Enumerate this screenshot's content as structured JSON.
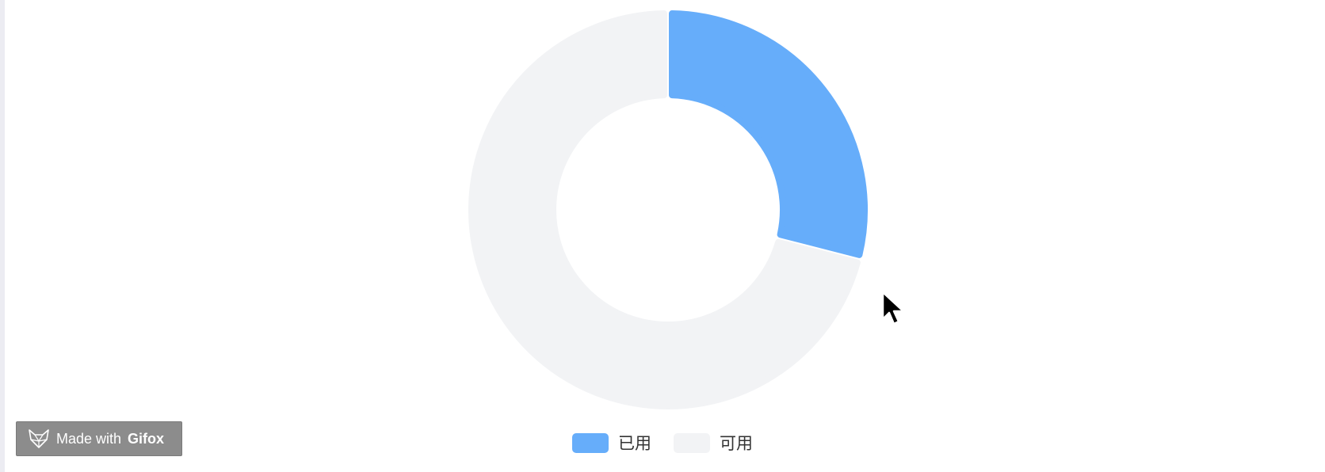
{
  "chart_data": {
    "type": "pie",
    "variant": "donut",
    "categories": [
      "已用",
      "可用"
    ],
    "values": [
      29,
      71
    ],
    "colors": [
      "#66adfa",
      "#f2f3f5"
    ],
    "legend_position": "bottom"
  },
  "watermark": {
    "prefix": "Made with",
    "brand": "Gifox",
    "icon": "fox-logo-icon"
  },
  "cursor": {
    "icon": "arrow-cursor-icon"
  }
}
